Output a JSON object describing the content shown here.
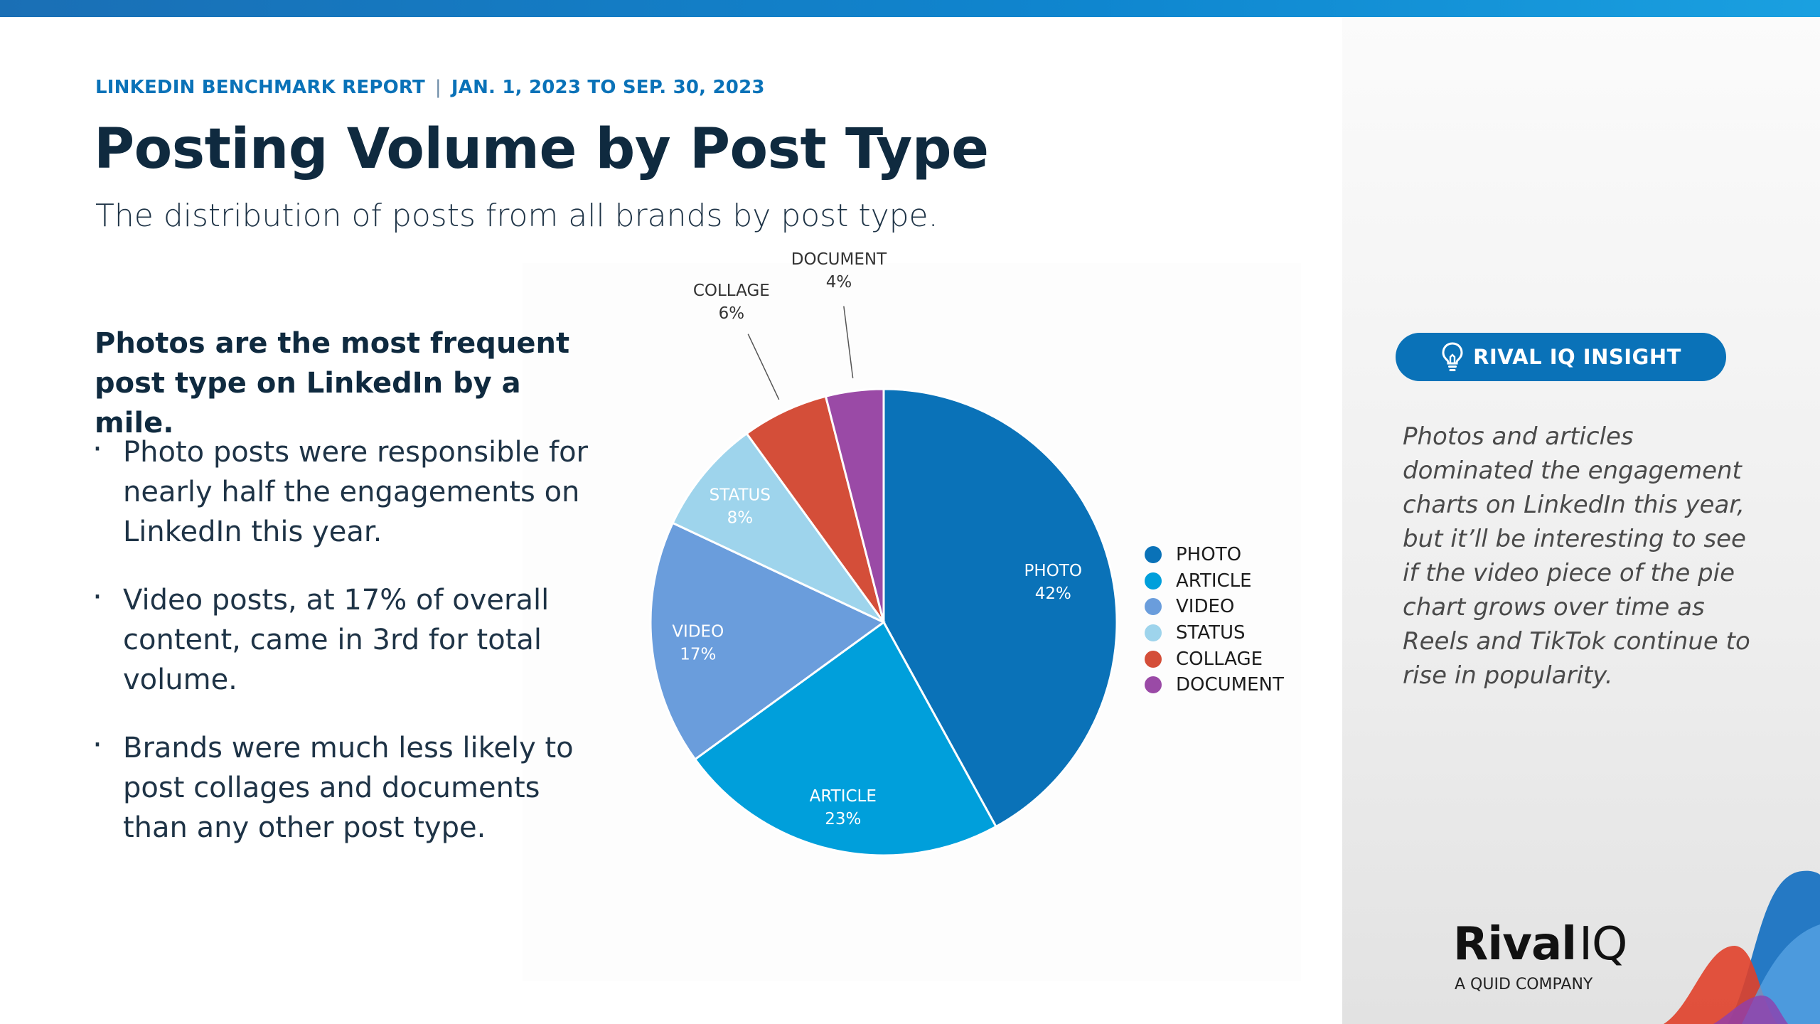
{
  "header": {
    "report_name": "LINKEDIN BENCHMARK REPORT",
    "separator": "|",
    "date_range": "JAN. 1, 2023 TO SEP. 30, 2023",
    "title": "Posting Volume by Post Type",
    "subtitle": "The distribution of posts from all brands by post type."
  },
  "summary": {
    "headline": "Photos are the most frequent post type on LinkedIn by a mile.",
    "bullets": [
      "Photo posts were responsible for nearly half the engagements on LinkedIn this year.",
      "Video posts, at 17% of overall content, came in 3rd for total volume.",
      "Brands were much less likely to post collages and documents than any other post type."
    ]
  },
  "chart_data": {
    "type": "pie",
    "title": "",
    "slices": [
      {
        "label": "PHOTO",
        "value": 42,
        "value_label": "42%",
        "color": "#0a72b8"
      },
      {
        "label": "ARTICLE",
        "value": 23,
        "value_label": "23%",
        "color": "#009fdb"
      },
      {
        "label": "VIDEO",
        "value": 17,
        "value_label": "17%",
        "color": "#6a9ddc"
      },
      {
        "label": "STATUS",
        "value": 8,
        "value_label": "8%",
        "color": "#9ed4ec"
      },
      {
        "label": "COLLAGE",
        "value": 6,
        "value_label": "6%",
        "color": "#d44e39"
      },
      {
        "label": "DOCUMENT",
        "value": 4,
        "value_label": "4%",
        "color": "#9a4aa6"
      }
    ],
    "legend_position": "right",
    "start_angle": "12 o'clock",
    "direction": "clockwise"
  },
  "insight": {
    "pill_label": "RIVAL IQ INSIGHT",
    "pill_icon": "lightbulb-icon",
    "text": "Photos and articles dominated the engagement charts on LinkedIn this year, but it’ll be interesting to see if the video piece of the pie chart grows over time as Reels and TikTok continue to rise in popularity."
  },
  "brand": {
    "logo_main": "Rival",
    "logo_iq": "IQ",
    "tagline": "A QUID COMPANY"
  },
  "colors": {
    "accent": "#0a72b8",
    "title": "#0f2a3f"
  }
}
